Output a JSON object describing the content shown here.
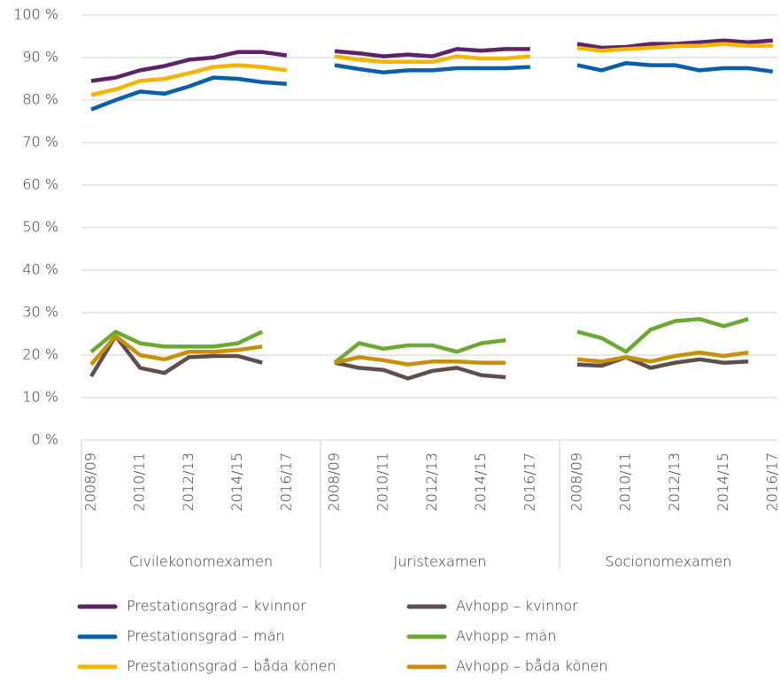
{
  "chart_data": {
    "type": "line",
    "ylim": [
      0,
      100
    ],
    "yticks": [
      {
        "value": 0,
        "label": "0 %"
      },
      {
        "value": 10,
        "label": "10 %"
      },
      {
        "value": 20,
        "label": "20 %"
      },
      {
        "value": 30,
        "label": "30 %"
      },
      {
        "value": 40,
        "label": "40 %"
      },
      {
        "value": 50,
        "label": "50 %"
      },
      {
        "value": 60,
        "label": "60 %"
      },
      {
        "value": 70,
        "label": "70 %"
      },
      {
        "value": 80,
        "label": "80 %"
      },
      {
        "value": 90,
        "label": "90 %"
      },
      {
        "value": 100,
        "label": "100 %"
      }
    ],
    "grid": true,
    "series": [
      {
        "name": "Prestationsgrad – kvinnor",
        "color": "#5c2466"
      },
      {
        "name": "Prestationsgrad – män",
        "color": "#0a5fa8"
      },
      {
        "name": "Prestationsgrad – båda könen",
        "color": "#f5b400"
      },
      {
        "name": "Avhopp – kvinnor",
        "color": "#5e4e4c"
      },
      {
        "name": "Avhopp – män",
        "color": "#6ca934"
      },
      {
        "name": "Avhopp – båda könen",
        "color": "#c8900a"
      }
    ],
    "panels": [
      {
        "label": "Civilekonomexamen",
        "categories": [
          "2008/09",
          null,
          "2010/11",
          null,
          "2012/13",
          null,
          "2014/15",
          null,
          "2016/17"
        ],
        "values": [
          [
            84.5,
            85.3,
            87,
            88,
            89.5,
            90,
            91.3,
            91.3,
            90.5
          ],
          [
            77.8,
            80,
            82,
            81.5,
            83.2,
            85.3,
            85,
            84.2,
            83.8
          ],
          [
            81.2,
            82.5,
            84.5,
            85,
            86.3,
            87.8,
            88.2,
            87.8,
            87
          ],
          [
            15,
            24.5,
            17,
            15.8,
            19.5,
            19.8,
            19.8,
            18.2,
            null
          ],
          [
            20.8,
            25.5,
            22.8,
            22,
            22,
            22,
            22.8,
            25.5,
            null
          ],
          [
            17.8,
            24.5,
            20,
            19,
            20.8,
            20.8,
            21.2,
            22,
            null
          ]
        ]
      },
      {
        "label": "Juristexamen",
        "categories": [
          "2008/09",
          null,
          "2010/11",
          null,
          "2012/13",
          null,
          "2014/15",
          null,
          "2016/17"
        ],
        "values": [
          [
            91.5,
            91,
            90.3,
            90.7,
            90.3,
            92,
            91.6,
            92,
            92
          ],
          [
            88.2,
            87.3,
            86.5,
            87,
            87,
            87.5,
            87.5,
            87.5,
            87.8
          ],
          [
            90.3,
            89.5,
            89,
            89,
            89,
            90.3,
            89.8,
            89.8,
            90.3
          ],
          [
            18.2,
            17,
            16.5,
            14.5,
            16.3,
            17,
            15.3,
            14.8,
            null
          ],
          [
            18.2,
            22.8,
            21.5,
            22.3,
            22.3,
            20.8,
            22.8,
            23.5,
            null
          ],
          [
            18.2,
            19.5,
            18.8,
            17.8,
            18.5,
            18.5,
            18.2,
            18.2,
            null
          ]
        ]
      },
      {
        "label": "Socionomexamen",
        "categories": [
          "2008/09",
          null,
          "2010/11",
          null,
          "2012/13",
          null,
          "2014/15",
          null,
          "2016/17"
        ],
        "values": [
          [
            93.2,
            92.3,
            92.5,
            93.2,
            93.2,
            93.6,
            94,
            93.6,
            94
          ],
          [
            88.2,
            87,
            88.7,
            88.2,
            88.2,
            87,
            87.5,
            87.5,
            86.7
          ],
          [
            92.3,
            91.6,
            92,
            92.3,
            92.7,
            92.8,
            93.2,
            92.8,
            92.8
          ],
          [
            17.8,
            17.5,
            19.5,
            17,
            18.2,
            19,
            18.2,
            18.5,
            null
          ],
          [
            25.5,
            24,
            20.8,
            26,
            28,
            28.5,
            26.8,
            28.5,
            null
          ],
          [
            19,
            18.5,
            19.5,
            18.5,
            19.8,
            20.6,
            19.8,
            20.6,
            null
          ]
        ]
      }
    ]
  }
}
